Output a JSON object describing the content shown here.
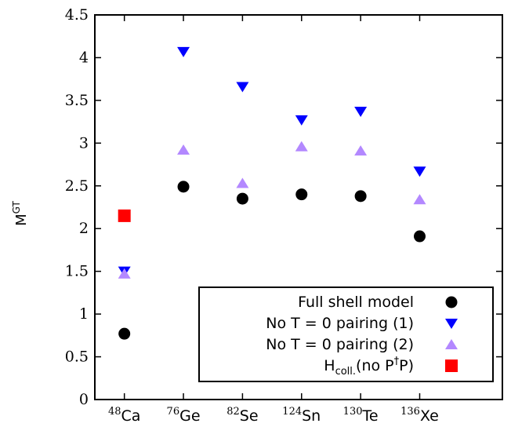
{
  "chart_data": {
    "type": "scatter",
    "categories": [
      {
        "sup": "48",
        "sym": "Ca"
      },
      {
        "sup": "76",
        "sym": "Ge"
      },
      {
        "sup": "82",
        "sym": "Se"
      },
      {
        "sup": "124",
        "sym": "Sn"
      },
      {
        "sup": "130",
        "sym": "Te"
      },
      {
        "sup": "136",
        "sym": "Xe"
      }
    ],
    "ylabel": {
      "base": "M",
      "sup": "GT"
    },
    "ylim": [
      0,
      4.5
    ],
    "yticks": [
      "0",
      "0.5",
      "1",
      "1.5",
      "2",
      "2.5",
      "3",
      "3.5",
      "4",
      "4.5"
    ],
    "grid": false,
    "legend_position": "bottom-right",
    "series": [
      {
        "name": "Full shell model",
        "marker": "circle",
        "color": "#000000",
        "values": [
          0.77,
          2.49,
          2.35,
          2.4,
          2.38,
          1.91
        ]
      },
      {
        "name": "No T = 0 pairing (1)",
        "marker": "triangle-down",
        "color": "#0000ff",
        "values": [
          1.5,
          4.07,
          3.66,
          3.27,
          3.37,
          2.67
        ]
      },
      {
        "name": "No T = 0 pairing (2)",
        "marker": "triangle-up",
        "color": "#b388ff",
        "values": [
          1.47,
          2.92,
          2.53,
          2.96,
          2.91,
          2.34
        ]
      },
      {
        "name_parts": {
          "base": "H",
          "sub": "coll.",
          "mid": "(no P",
          "sup": "†",
          "end": "P)"
        },
        "marker": "square",
        "color": "#ff0000",
        "values": [
          2.15,
          null,
          null,
          null,
          null,
          null
        ]
      }
    ]
  }
}
